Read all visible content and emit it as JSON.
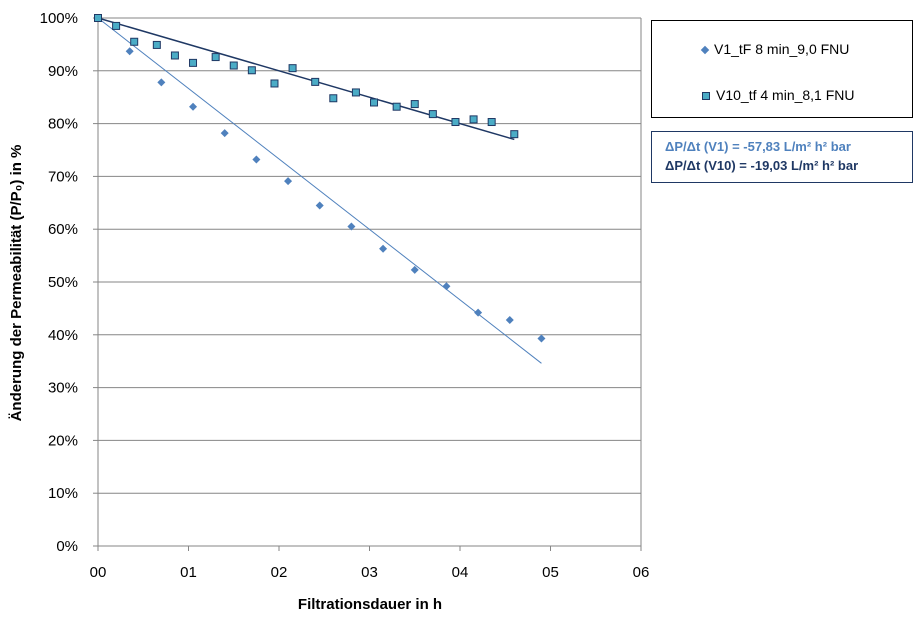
{
  "chart_data": {
    "type": "scatter",
    "xlabel": "Filtrationsdauer  in h",
    "ylabel": "Änderung der Permeabilität (P/P₀) in %",
    "xlim": [
      0,
      6
    ],
    "ylim": [
      0,
      100
    ],
    "x_ticks": [
      "00",
      "01",
      "02",
      "03",
      "04",
      "05",
      "06"
    ],
    "y_ticks": [
      "0%",
      "10%",
      "20%",
      "30%",
      "40%",
      "50%",
      "60%",
      "70%",
      "80%",
      "90%",
      "100%"
    ],
    "grid": "horizontal",
    "legend_position": "right",
    "series": [
      {
        "name": "V1_tF 8 min_9,0 FNU",
        "marker": "diamond",
        "color": "#4f81bd",
        "x": [
          0.0,
          0.35,
          0.7,
          1.05,
          1.4,
          1.75,
          2.1,
          2.45,
          2.8,
          3.15,
          3.5,
          3.85,
          4.2,
          4.55,
          4.9
        ],
        "y": [
          100,
          93.7,
          87.8,
          83.2,
          78.2,
          73.2,
          69.1,
          64.5,
          60.5,
          56.3,
          52.3,
          49.2,
          44.2,
          42.8,
          39.3
        ],
        "trendline": {
          "x": [
            0,
            4.9
          ],
          "y": [
            100,
            34.6
          ]
        }
      },
      {
        "name": "V10_tf 4 min_8,1 FNU",
        "marker": "square",
        "color": "#4bacc6",
        "x": [
          0.0,
          0.2,
          0.4,
          0.65,
          0.85,
          1.05,
          1.3,
          1.5,
          1.7,
          1.95,
          2.15,
          2.4,
          2.6,
          2.85,
          3.05,
          3.3,
          3.5,
          3.7,
          3.95,
          4.15,
          4.35,
          4.6
        ],
        "y": [
          100,
          98.5,
          95.5,
          94.9,
          92.9,
          91.5,
          92.6,
          91.0,
          90.1,
          87.6,
          90.5,
          87.9,
          84.8,
          85.9,
          84.0,
          83.2,
          83.7,
          81.8,
          80.3,
          80.8,
          80.3,
          78.0
        ],
        "trendline": {
          "x": [
            0,
            4.6
          ],
          "y": [
            100,
            77.0
          ]
        }
      }
    ],
    "annotations": [
      {
        "text": "ΔP/Δt (V1) =  -57,83 L/m² h² bar",
        "color": "#4f81bd"
      },
      {
        "text": "ΔP/Δt (V10) = -19,03 L/m² h² bar",
        "color": "#1f3864"
      }
    ]
  },
  "colors": {
    "series1": "#4f81bd",
    "series2_fill": "#4bacc6",
    "series2_edge": "#1f3864",
    "trend2": "#1f3864",
    "grid": "#868686"
  }
}
